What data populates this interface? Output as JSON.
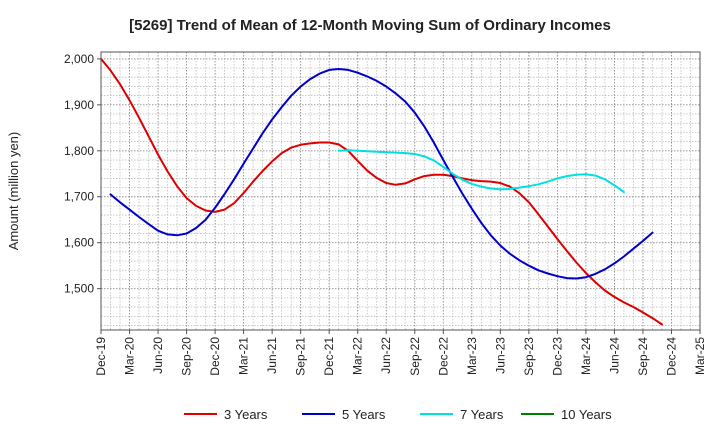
{
  "chart_data": {
    "type": "line",
    "title": "[5269]  Trend of Mean of 12-Month Moving Sum of Ordinary Incomes",
    "xlabel": "",
    "ylabel": "Amount (million yen)",
    "x_ticks": [
      "Dec-19",
      "Mar-20",
      "Jun-20",
      "Sep-20",
      "Dec-20",
      "Mar-21",
      "Jun-21",
      "Sep-21",
      "Dec-21",
      "Mar-22",
      "Jun-22",
      "Sep-22",
      "Dec-22",
      "Mar-23",
      "Jun-23",
      "Sep-23",
      "Dec-23",
      "Mar-24",
      "Jun-24",
      "Sep-24",
      "Dec-24",
      "Mar-25"
    ],
    "y_ticks": [
      1500,
      1600,
      1700,
      1800,
      1900,
      2000
    ],
    "y_tick_labels": [
      "1,500",
      "1,600",
      "1,700",
      "1,800",
      "1,900",
      "2,000"
    ],
    "ylim": [
      1410,
      2015
    ],
    "xlim": [
      0,
      63
    ],
    "grid": true,
    "legend_position": "bottom",
    "series": [
      {
        "name": "3 Years",
        "color": "#dd0000",
        "points": [
          [
            0,
            2000
          ],
          [
            1,
            1975
          ],
          [
            2,
            1945
          ],
          [
            3,
            1910
          ],
          [
            4,
            1872
          ],
          [
            5,
            1832
          ],
          [
            6,
            1792
          ],
          [
            7,
            1755
          ],
          [
            8,
            1723
          ],
          [
            9,
            1697
          ],
          [
            10,
            1680
          ],
          [
            11,
            1670
          ],
          [
            12,
            1667
          ],
          [
            13,
            1672
          ],
          [
            14,
            1686
          ],
          [
            15,
            1708
          ],
          [
            16,
            1733
          ],
          [
            17,
            1756
          ],
          [
            18,
            1777
          ],
          [
            19,
            1795
          ],
          [
            20,
            1807
          ],
          [
            21,
            1813
          ],
          [
            22,
            1816
          ],
          [
            23,
            1818
          ],
          [
            24,
            1818
          ],
          [
            25,
            1814
          ],
          [
            26,
            1800
          ],
          [
            27,
            1778
          ],
          [
            28,
            1757
          ],
          [
            29,
            1741
          ],
          [
            30,
            1730
          ],
          [
            31,
            1726
          ],
          [
            32,
            1729
          ],
          [
            33,
            1738
          ],
          [
            34,
            1745
          ],
          [
            35,
            1748
          ],
          [
            36,
            1748
          ],
          [
            37,
            1745
          ],
          [
            38,
            1740
          ],
          [
            39,
            1736
          ],
          [
            40,
            1734
          ],
          [
            41,
            1733
          ],
          [
            42,
            1730
          ],
          [
            43,
            1722
          ],
          [
            44,
            1708
          ],
          [
            45,
            1688
          ],
          [
            46,
            1662
          ],
          [
            47,
            1635
          ],
          [
            48,
            1608
          ],
          [
            49,
            1582
          ],
          [
            50,
            1557
          ],
          [
            51,
            1534
          ],
          [
            52,
            1514
          ],
          [
            53,
            1496
          ],
          [
            54,
            1482
          ],
          [
            55,
            1470
          ],
          [
            56,
            1460
          ],
          [
            57,
            1448
          ],
          [
            58,
            1436
          ],
          [
            59,
            1422
          ]
        ]
      },
      {
        "name": "5 Years",
        "color": "#0000cc",
        "points": [
          [
            1,
            1705
          ],
          [
            2,
            1688
          ],
          [
            3,
            1672
          ],
          [
            4,
            1656
          ],
          [
            5,
            1641
          ],
          [
            6,
            1626
          ],
          [
            7,
            1618
          ],
          [
            8,
            1616
          ],
          [
            9,
            1620
          ],
          [
            10,
            1632
          ],
          [
            11,
            1650
          ],
          [
            12,
            1676
          ],
          [
            13,
            1706
          ],
          [
            14,
            1738
          ],
          [
            15,
            1772
          ],
          [
            16,
            1805
          ],
          [
            17,
            1838
          ],
          [
            18,
            1868
          ],
          [
            19,
            1895
          ],
          [
            20,
            1920
          ],
          [
            21,
            1940
          ],
          [
            22,
            1956
          ],
          [
            23,
            1968
          ],
          [
            24,
            1976
          ],
          [
            25,
            1978
          ],
          [
            26,
            1976
          ],
          [
            27,
            1970
          ],
          [
            28,
            1962
          ],
          [
            29,
            1952
          ],
          [
            30,
            1940
          ],
          [
            31,
            1925
          ],
          [
            32,
            1907
          ],
          [
            33,
            1883
          ],
          [
            34,
            1853
          ],
          [
            35,
            1818
          ],
          [
            36,
            1780
          ],
          [
            37,
            1743
          ],
          [
            38,
            1707
          ],
          [
            39,
            1674
          ],
          [
            40,
            1643
          ],
          [
            41,
            1616
          ],
          [
            42,
            1594
          ],
          [
            43,
            1576
          ],
          [
            44,
            1562
          ],
          [
            45,
            1550
          ],
          [
            46,
            1540
          ],
          [
            47,
            1533
          ],
          [
            48,
            1527
          ],
          [
            49,
            1523
          ],
          [
            50,
            1522
          ],
          [
            51,
            1525
          ],
          [
            52,
            1532
          ],
          [
            53,
            1542
          ],
          [
            54,
            1555
          ],
          [
            55,
            1570
          ],
          [
            56,
            1587
          ],
          [
            57,
            1604
          ],
          [
            58,
            1622
          ]
        ]
      },
      {
        "name": "7 Years",
        "color": "#00e0e0",
        "points": [
          [
            25,
            1800
          ],
          [
            26,
            1801
          ],
          [
            27,
            1800
          ],
          [
            28,
            1799
          ],
          [
            29,
            1798
          ],
          [
            30,
            1797
          ],
          [
            31,
            1796
          ],
          [
            32,
            1795
          ],
          [
            33,
            1793
          ],
          [
            34,
            1788
          ],
          [
            35,
            1779
          ],
          [
            36,
            1765
          ],
          [
            37,
            1750
          ],
          [
            38,
            1737
          ],
          [
            39,
            1728
          ],
          [
            40,
            1722
          ],
          [
            41,
            1718
          ],
          [
            42,
            1716
          ],
          [
            43,
            1717
          ],
          [
            44,
            1720
          ],
          [
            45,
            1723
          ],
          [
            46,
            1727
          ],
          [
            47,
            1733
          ],
          [
            48,
            1740
          ],
          [
            49,
            1745
          ],
          [
            50,
            1748
          ],
          [
            51,
            1749
          ],
          [
            52,
            1746
          ],
          [
            53,
            1738
          ],
          [
            54,
            1725
          ],
          [
            55,
            1710
          ]
        ]
      },
      {
        "name": "10 Years",
        "color": "#008000",
        "points": []
      }
    ]
  }
}
